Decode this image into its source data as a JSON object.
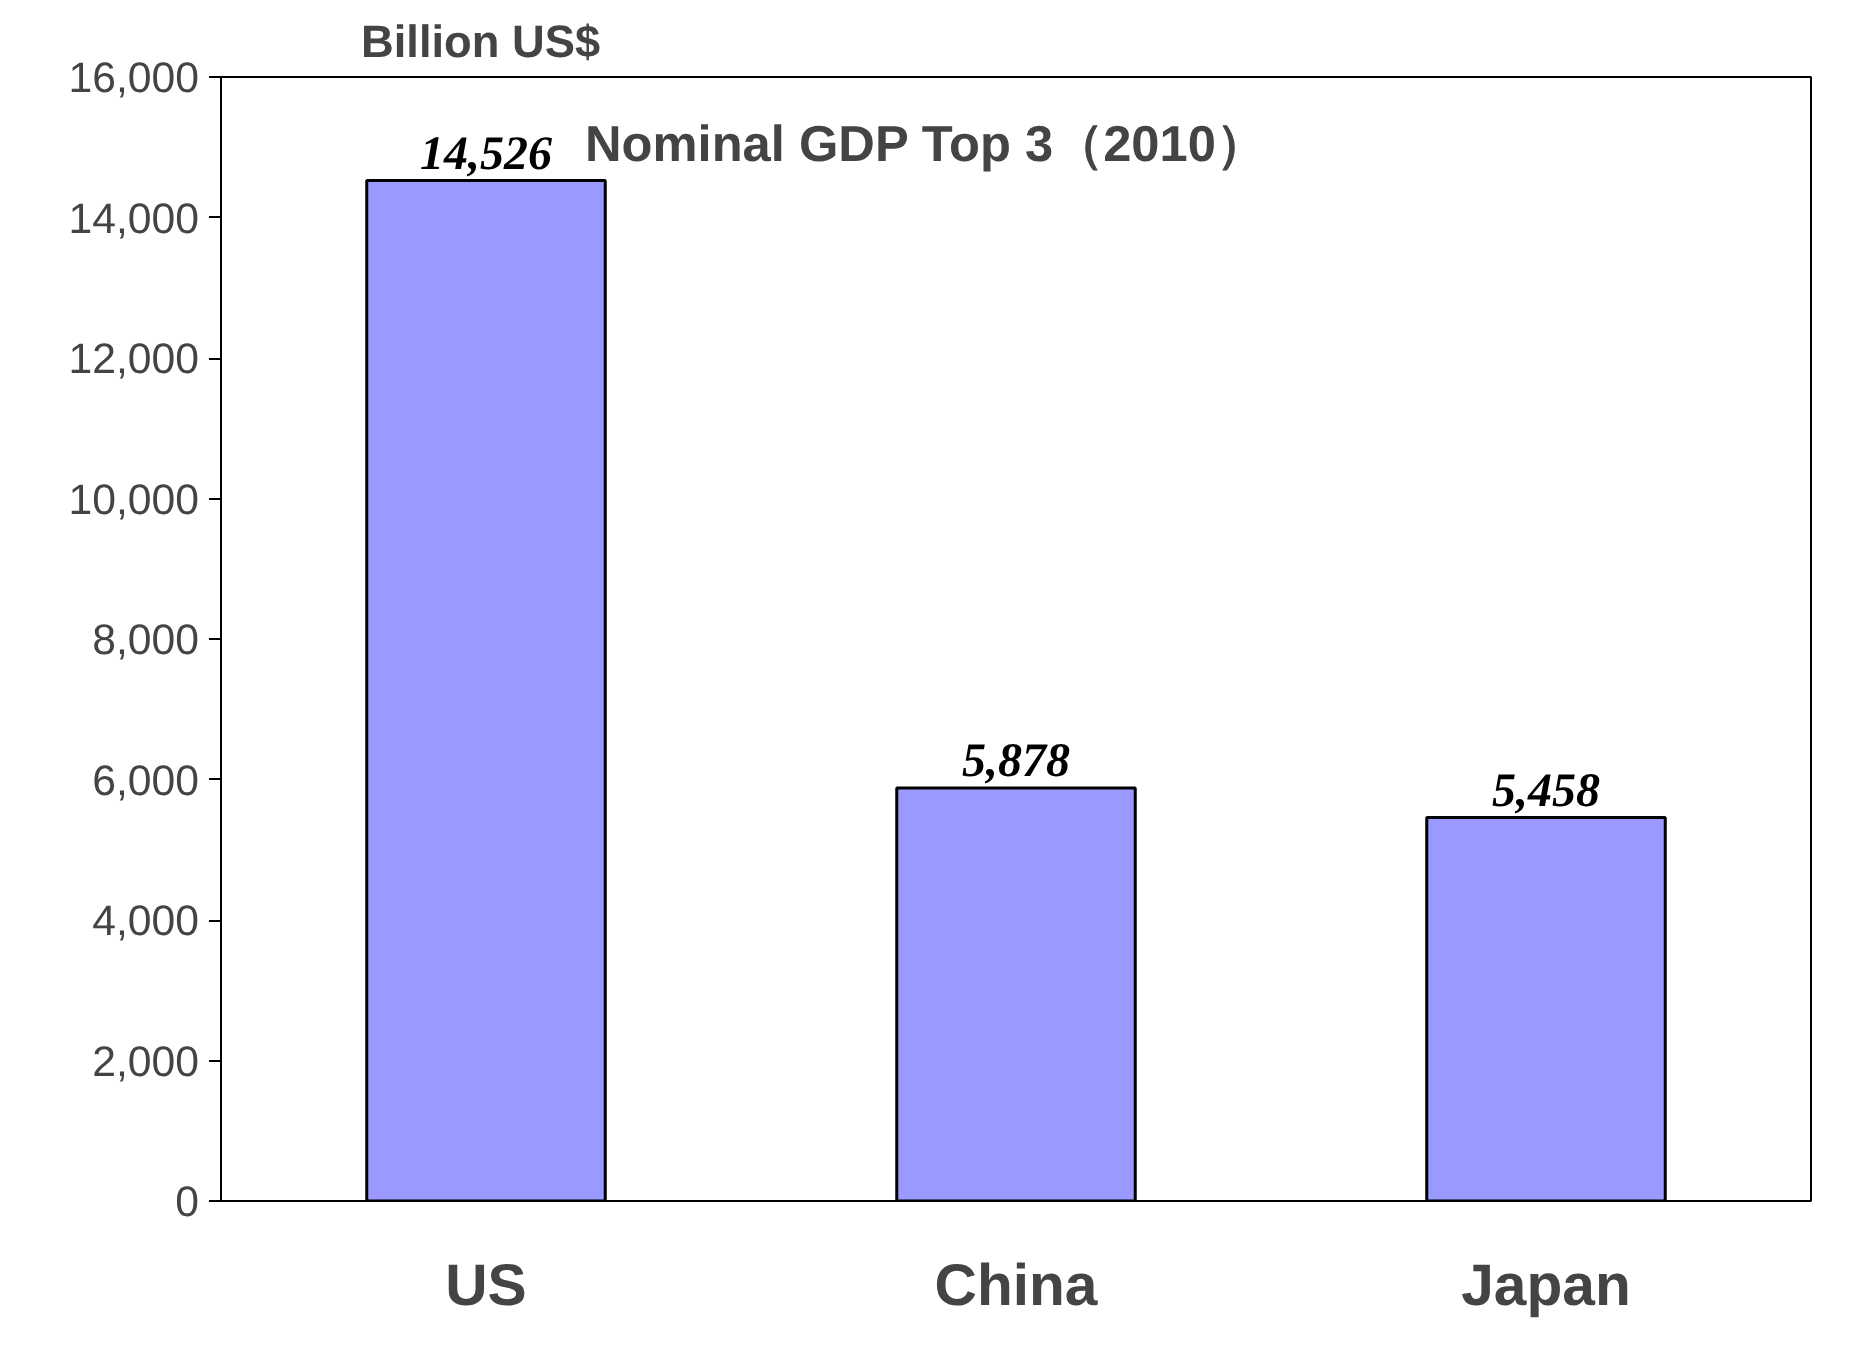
{
  "chart_data": {
    "type": "bar",
    "title": "Nominal GDP Top 3（2010）",
    "ylabel": "Billion US$",
    "categories": [
      "US",
      "China",
      "Japan"
    ],
    "values": [
      14526,
      5878,
      5458
    ],
    "value_labels": [
      "14,526",
      "5,878",
      "5,458"
    ],
    "color": "#9999ff",
    "ylim": [
      0,
      16000
    ],
    "yticks": [
      {
        "value": 0,
        "label": "0"
      },
      {
        "value": 2000,
        "label": "2,000"
      },
      {
        "value": 4000,
        "label": "4,000"
      },
      {
        "value": 6000,
        "label": "6,000"
      },
      {
        "value": 8000,
        "label": "8,000"
      },
      {
        "value": 10000,
        "label": "10,000"
      },
      {
        "value": 12000,
        "label": "12,000"
      },
      {
        "value": 14000,
        "label": "14,000"
      },
      {
        "value": 16000,
        "label": "16,000"
      }
    ],
    "grid": false
  }
}
